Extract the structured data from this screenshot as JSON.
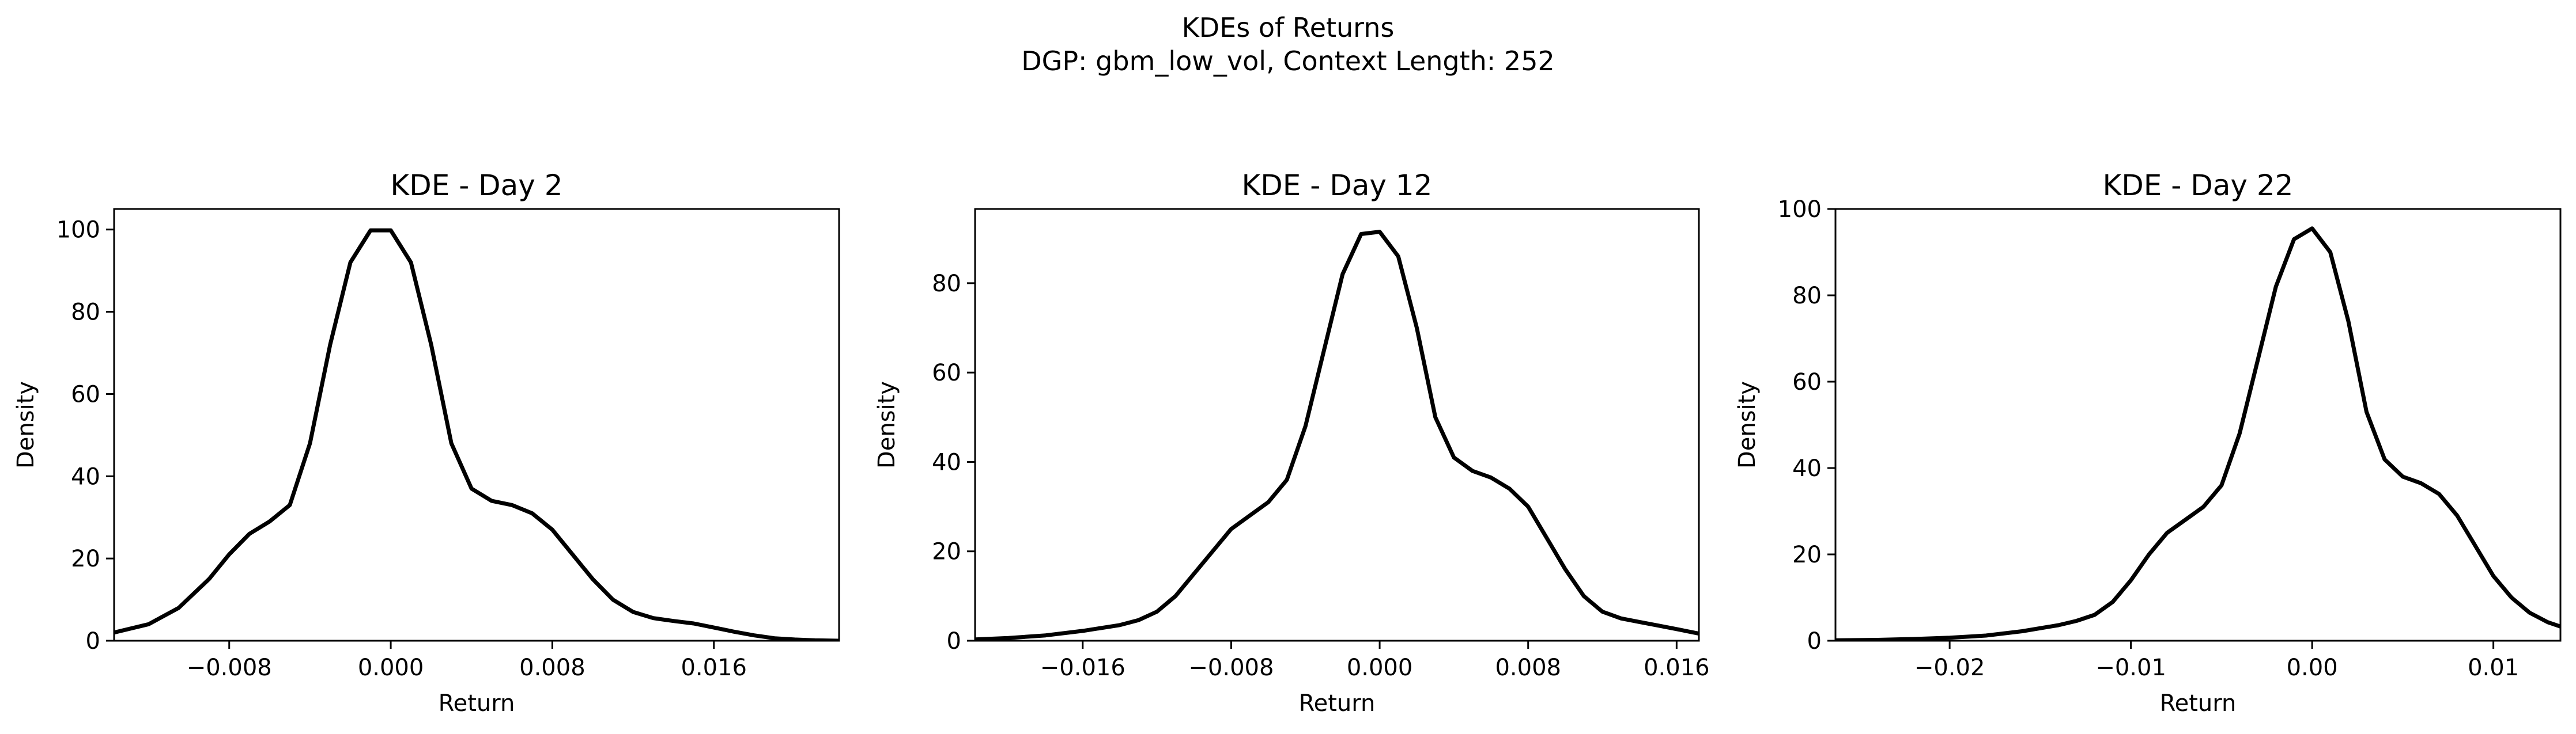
{
  "figure": {
    "title_line1": "KDEs of Returns",
    "title_line2": "DGP: gbm_low_vol, Context Length: 252"
  },
  "chart_data": [
    {
      "type": "line",
      "title": "KDE - Day 2",
      "xlabel": "Return",
      "ylabel": "Density",
      "xlim": [
        -0.0137,
        0.0222
      ],
      "ylim": [
        0,
        105
      ],
      "xticks": [
        -0.008,
        0.0,
        0.008,
        0.016
      ],
      "xtick_labels": [
        "−0.008",
        "0.000",
        "0.008",
        "0.016"
      ],
      "yticks": [
        0,
        20,
        40,
        60,
        80,
        100
      ],
      "ytick_labels": [
        "0",
        "20",
        "40",
        "60",
        "80",
        "100"
      ],
      "grid": false,
      "color": "#000000",
      "series": [
        {
          "x": [
            -0.0137,
            -0.012,
            -0.0105,
            -0.009,
            -0.008,
            -0.007,
            -0.006,
            -0.005,
            -0.004,
            -0.003,
            -0.002,
            -0.001,
            0.0,
            0.001,
            0.002,
            0.003,
            0.004,
            0.005,
            0.006,
            0.007,
            0.008,
            0.009,
            0.01,
            0.011,
            0.012,
            0.013,
            0.014,
            0.015,
            0.016,
            0.017,
            0.018,
            0.019,
            0.02,
            0.021,
            0.0222
          ],
          "y": [
            2,
            4,
            8,
            15,
            21,
            26,
            29,
            33,
            48,
            72,
            92,
            99.8,
            99.8,
            92,
            72,
            48,
            37,
            34,
            33,
            31,
            27,
            21,
            15,
            10,
            7,
            5.5,
            4.8,
            4.2,
            3.2,
            2.2,
            1.3,
            0.6,
            0.3,
            0.1,
            0
          ]
        }
      ]
    },
    {
      "type": "line",
      "title": "KDE - Day 12",
      "xlabel": "Return",
      "ylabel": "Density",
      "xlim": [
        -0.0218,
        0.0172
      ],
      "ylim": [
        0,
        96.6
      ],
      "xticks": [
        -0.016,
        -0.008,
        0.0,
        0.008,
        0.016
      ],
      "xtick_labels": [
        "−0.016",
        "−0.008",
        "0.000",
        "0.008",
        "0.016"
      ],
      "yticks": [
        0,
        20,
        40,
        60,
        80
      ],
      "ytick_labels": [
        "0",
        "20",
        "40",
        "60",
        "80"
      ],
      "grid": false,
      "color": "#000000",
      "series": [
        {
          "x": [
            -0.0218,
            -0.02,
            -0.018,
            -0.016,
            -0.014,
            -0.013,
            -0.012,
            -0.011,
            -0.01,
            -0.009,
            -0.008,
            -0.007,
            -0.006,
            -0.005,
            -0.004,
            -0.003,
            -0.002,
            -0.001,
            0.0,
            0.001,
            0.002,
            0.003,
            0.004,
            0.005,
            0.006,
            0.007,
            0.008,
            0.009,
            0.01,
            0.011,
            0.012,
            0.013,
            0.014,
            0.015,
            0.016,
            0.0172
          ],
          "y": [
            0.3,
            0.6,
            1.2,
            2.2,
            3.5,
            4.6,
            6.5,
            10,
            15,
            20,
            25,
            28,
            31,
            36,
            48,
            65,
            82,
            91,
            91.5,
            86,
            70,
            50,
            41,
            38,
            36.5,
            34,
            30,
            23,
            16,
            10,
            6.5,
            5,
            4.2,
            3.4,
            2.6,
            1.6
          ]
        }
      ]
    },
    {
      "type": "line",
      "title": "KDE - Day 22",
      "xlabel": "Return",
      "ylabel": "Density",
      "xlim": [
        -0.0263,
        0.0137
      ],
      "ylim": [
        0,
        100
      ],
      "xticks": [
        -0.02,
        -0.01,
        0.0,
        0.01
      ],
      "xtick_labels": [
        "−0.02",
        "−0.01",
        "0.00",
        "0.01"
      ],
      "yticks": [
        0,
        20,
        40,
        60,
        80,
        100
      ],
      "ytick_labels": [
        "0",
        "20",
        "40",
        "60",
        "80",
        "100"
      ],
      "grid": false,
      "color": "#000000",
      "series": [
        {
          "x": [
            -0.0263,
            -0.024,
            -0.022,
            -0.02,
            -0.018,
            -0.016,
            -0.014,
            -0.013,
            -0.012,
            -0.011,
            -0.01,
            -0.009,
            -0.008,
            -0.007,
            -0.006,
            -0.005,
            -0.004,
            -0.003,
            -0.002,
            -0.001,
            0.0,
            0.001,
            0.002,
            0.003,
            0.004,
            0.005,
            0.006,
            0.007,
            0.008,
            0.009,
            0.01,
            0.011,
            0.012,
            0.013,
            0.0137
          ],
          "y": [
            0.1,
            0.2,
            0.4,
            0.7,
            1.2,
            2.2,
            3.6,
            4.6,
            6,
            9,
            14,
            20,
            25,
            28,
            31,
            36,
            48,
            65,
            82,
            93,
            95.5,
            90,
            74,
            53,
            42,
            38,
            36.5,
            34,
            29,
            22,
            15,
            10,
            6.5,
            4.3,
            3.3
          ]
        }
      ]
    }
  ]
}
